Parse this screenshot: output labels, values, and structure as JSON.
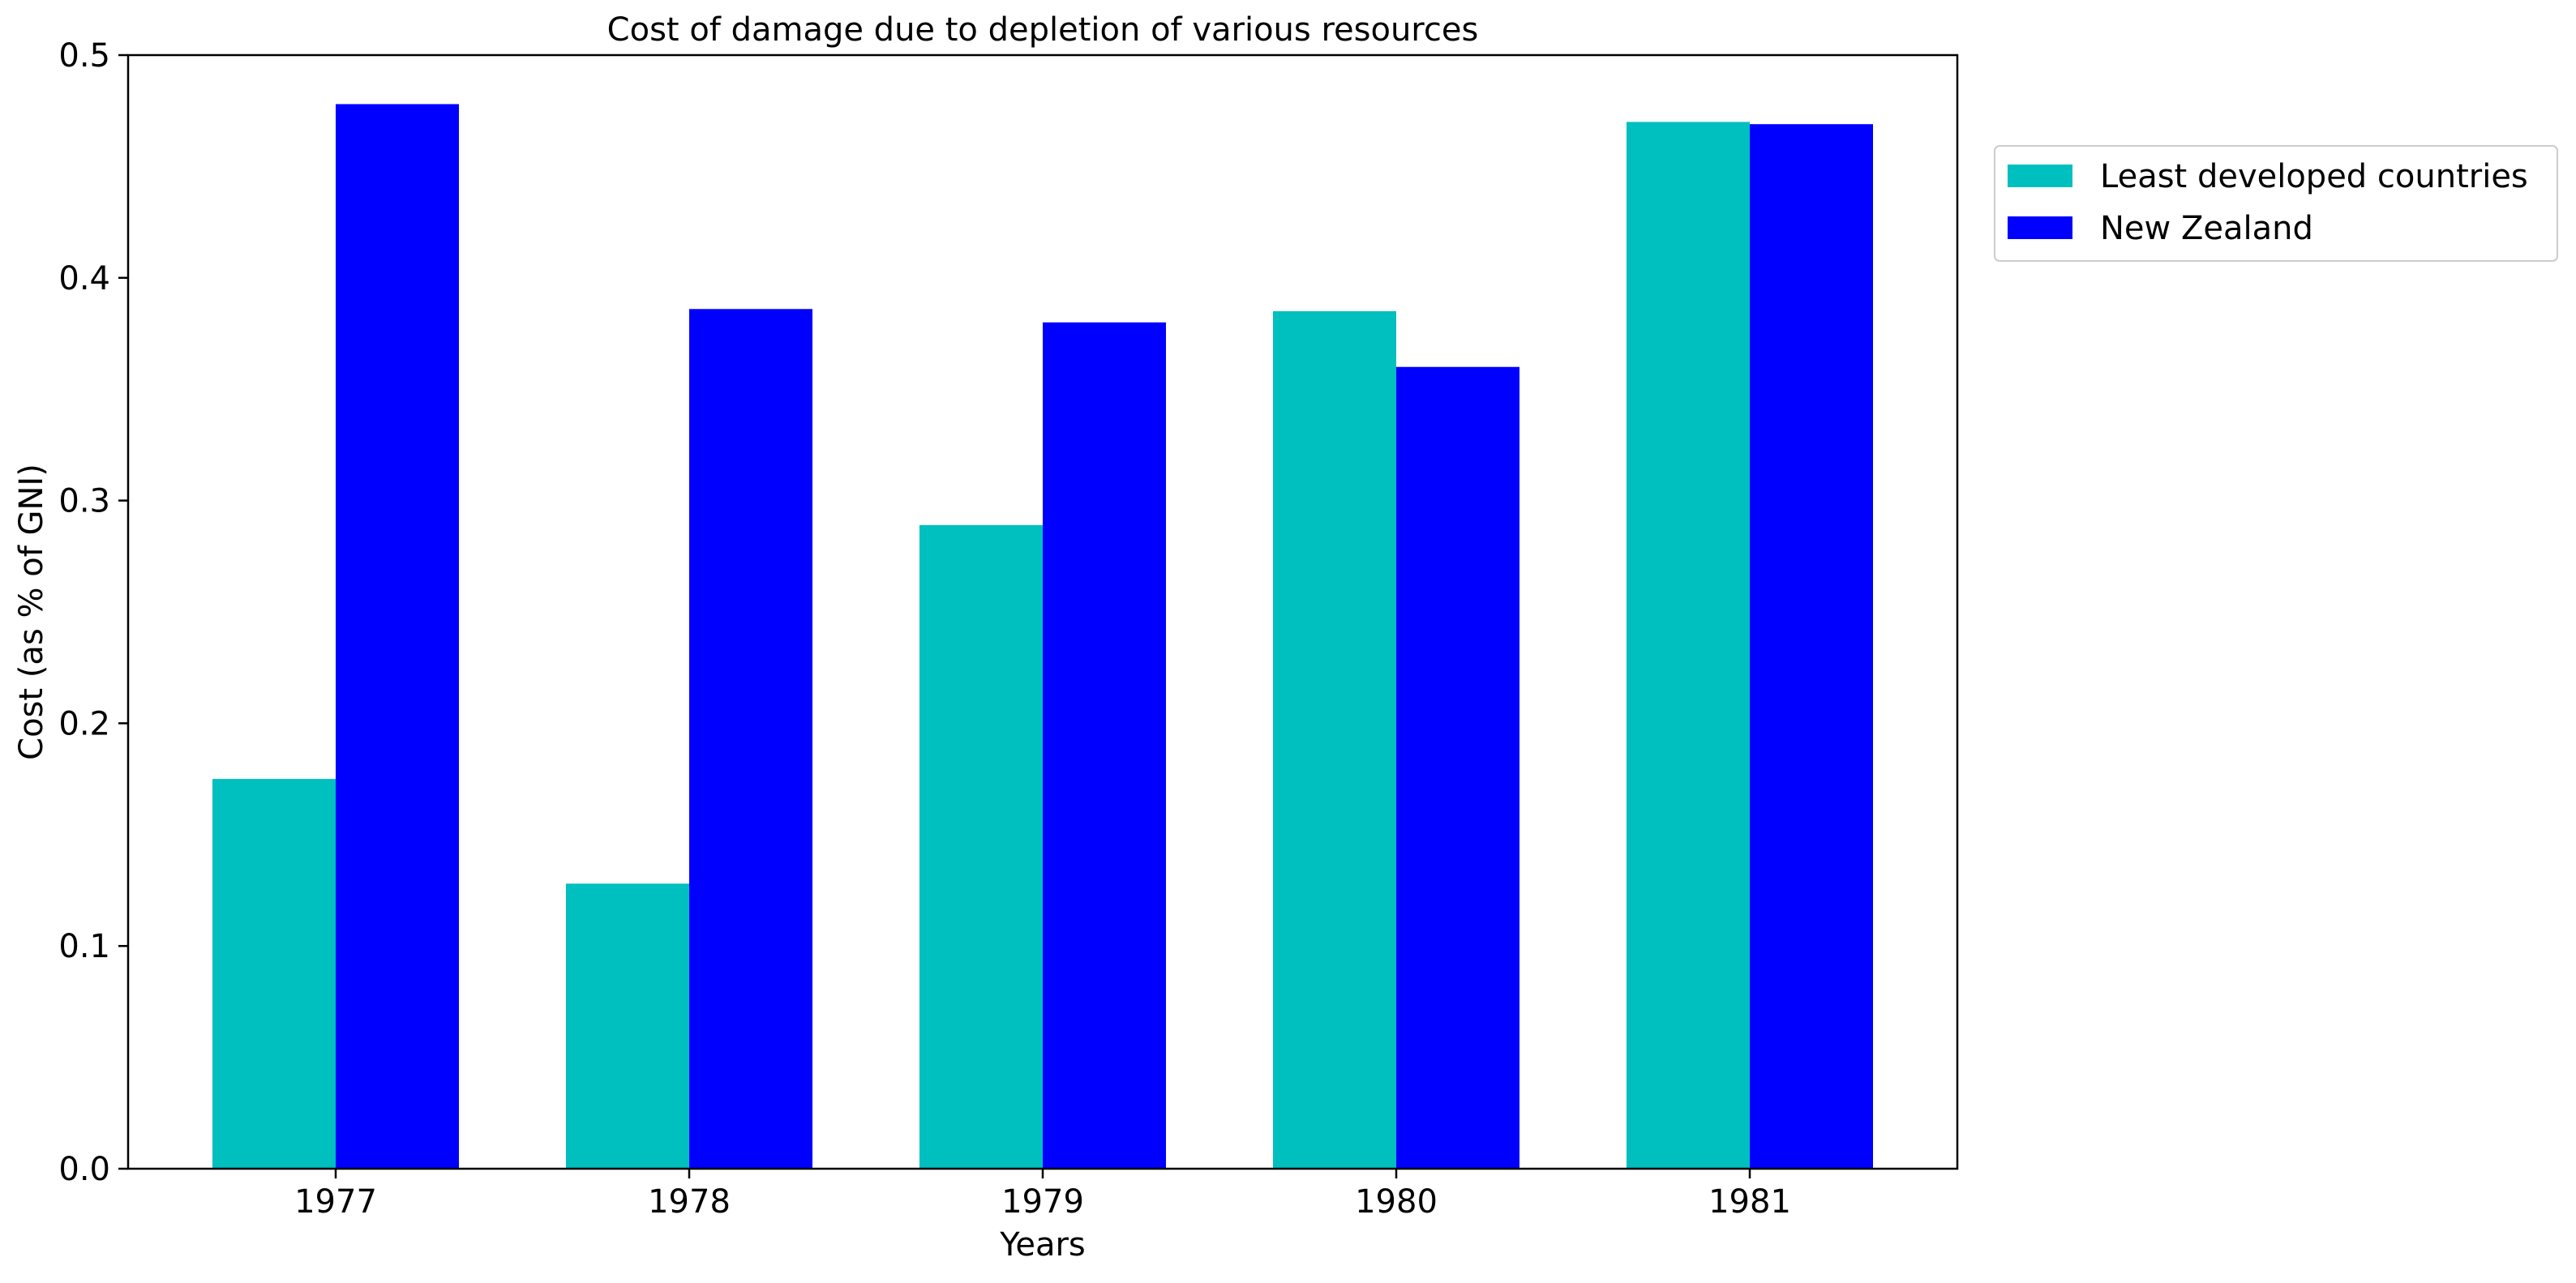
{
  "chart_data": {
    "type": "bar",
    "title": "Cost of damage due to depletion of various resources",
    "xlabel": "Years",
    "ylabel": "Cost (as % of GNI)",
    "categories": [
      "1977",
      "1978",
      "1979",
      "1980",
      "1981"
    ],
    "series": [
      {
        "name": "Least developed countries",
        "color": "#00BFBF",
        "values": [
          0.175,
          0.128,
          0.289,
          0.385,
          0.47
        ]
      },
      {
        "name": "New Zealand",
        "color": "#0000FF",
        "values": [
          0.478,
          0.386,
          0.38,
          0.36,
          0.469
        ]
      }
    ],
    "ylim": [
      0,
      0.5
    ],
    "yticks": [
      "0.0",
      "0.1",
      "0.2",
      "0.3",
      "0.4",
      "0.5"
    ],
    "grid": false,
    "legend_position": "upper-right-outside"
  }
}
